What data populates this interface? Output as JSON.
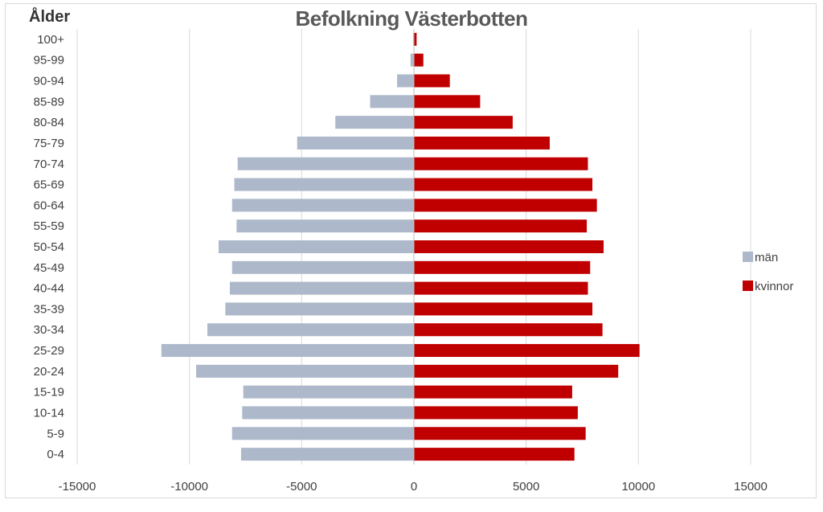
{
  "chart_data": {
    "type": "bar",
    "orientation": "horizontal",
    "title": "Befolkning Västerbotten",
    "ylabel": "Ålder",
    "xlabel": "",
    "xlim": [
      -15000,
      15000
    ],
    "xticks": [
      "-15000",
      "-10000",
      "-5000",
      "0",
      "5000",
      "10000",
      "15000"
    ],
    "grid": true,
    "legend_position": "right",
    "categories": [
      "0-4",
      "5-9",
      "10-14",
      "15-19",
      "20-24",
      "25-29",
      "30-34",
      "35-39",
      "40-44",
      "45-49",
      "50-54",
      "55-59",
      "60-64",
      "65-69",
      "70-74",
      "75-79",
      "80-84",
      "85-89",
      "90-94",
      "95-99",
      "100+"
    ],
    "series": [
      {
        "name": "män",
        "color": "#adb9ca",
        "values": [
          -7700,
          -8100,
          -7650,
          -7600,
          -9700,
          -11250,
          -9200,
          -8400,
          -8200,
          -8100,
          -8700,
          -7900,
          -8100,
          -8000,
          -7850,
          -5200,
          -3500,
          -1950,
          -750,
          -150,
          -40
        ]
      },
      {
        "name": "kvinnor",
        "color": "#c00000",
        "values": [
          7150,
          7650,
          7300,
          7050,
          9100,
          10050,
          8400,
          7950,
          7750,
          7850,
          8450,
          7700,
          8150,
          7950,
          7750,
          6050,
          4400,
          2950,
          1600,
          420,
          120
        ]
      }
    ]
  }
}
